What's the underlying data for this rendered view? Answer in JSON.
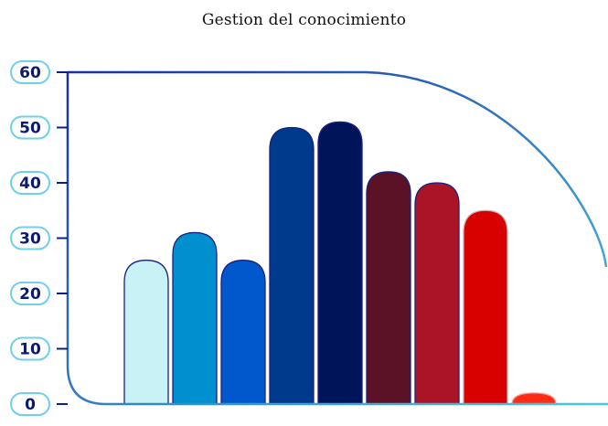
{
  "chart_data": {
    "type": "bar",
    "title": "Gestion del conocimiento",
    "xlabel": "",
    "ylabel": "",
    "ylim": [
      0,
      60
    ],
    "yticks": [
      "0",
      "10",
      "20",
      "30",
      "40",
      "50",
      "60"
    ],
    "values": [
      26,
      31,
      26,
      50,
      51,
      42,
      40,
      35,
      2
    ],
    "bar_colors": [
      "#c8f2f6",
      "#0090cf",
      "#0058cc",
      "#003a8c",
      "#001459",
      "#5c1226",
      "#ab1427",
      "#d90000",
      "#ff2b12"
    ],
    "grid": false,
    "legend": "none"
  },
  "colors": {
    "axis": "#0d1f8a",
    "frame_gradient_start": "#1a2f9a",
    "frame_gradient_end": "#4cc8e6",
    "tick_label": "#0a1a6e"
  }
}
